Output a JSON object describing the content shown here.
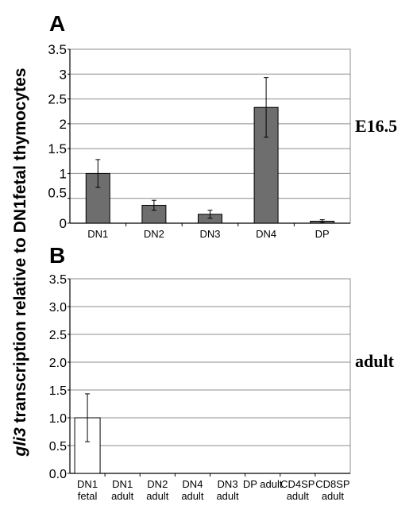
{
  "figure": {
    "ylabel_gene": "gli3",
    "ylabel_rest": " transcription relative to DN1fetal thymocytes"
  },
  "chart_data": [
    {
      "panel": "A",
      "condition": "E16.5",
      "type": "bar",
      "categories": [
        [
          "DN1"
        ],
        [
          "DN2"
        ],
        [
          "DN3"
        ],
        [
          "DN4"
        ],
        [
          "DP"
        ]
      ],
      "values": [
        1.0,
        0.36,
        0.18,
        2.33,
        0.04
      ],
      "errors": [
        0.28,
        0.1,
        0.08,
        0.6,
        0.03
      ],
      "yticks": [
        "3.5",
        "3",
        "2.5",
        "2",
        "1.5",
        "1",
        "0.5",
        "0"
      ],
      "ylim": [
        0,
        3.5
      ],
      "grid": true,
      "bar_color": "#6e6e6e"
    },
    {
      "panel": "B",
      "condition": "adult",
      "type": "bar",
      "categories": [
        [
          "DN1",
          "fetal"
        ],
        [
          "DN1",
          "adult"
        ],
        [
          "DN2",
          "adult"
        ],
        [
          "DN4",
          "adult"
        ],
        [
          "DN3",
          "adult"
        ],
        [
          "DP adult"
        ],
        [
          "CD4SP",
          "adult"
        ],
        [
          "CD8SP",
          "adult"
        ]
      ],
      "values": [
        1.0,
        0,
        0,
        0,
        0,
        0,
        0,
        0
      ],
      "errors": [
        0.43,
        0,
        0,
        0,
        0,
        0,
        0,
        0
      ],
      "yticks": [
        "3.5",
        "3.0",
        "2.5",
        "2.0",
        "1.5",
        "1.0",
        "0.5",
        "0.0"
      ],
      "ylim": [
        0,
        3.5
      ],
      "grid": true,
      "bar_color": "#ffffff"
    }
  ]
}
